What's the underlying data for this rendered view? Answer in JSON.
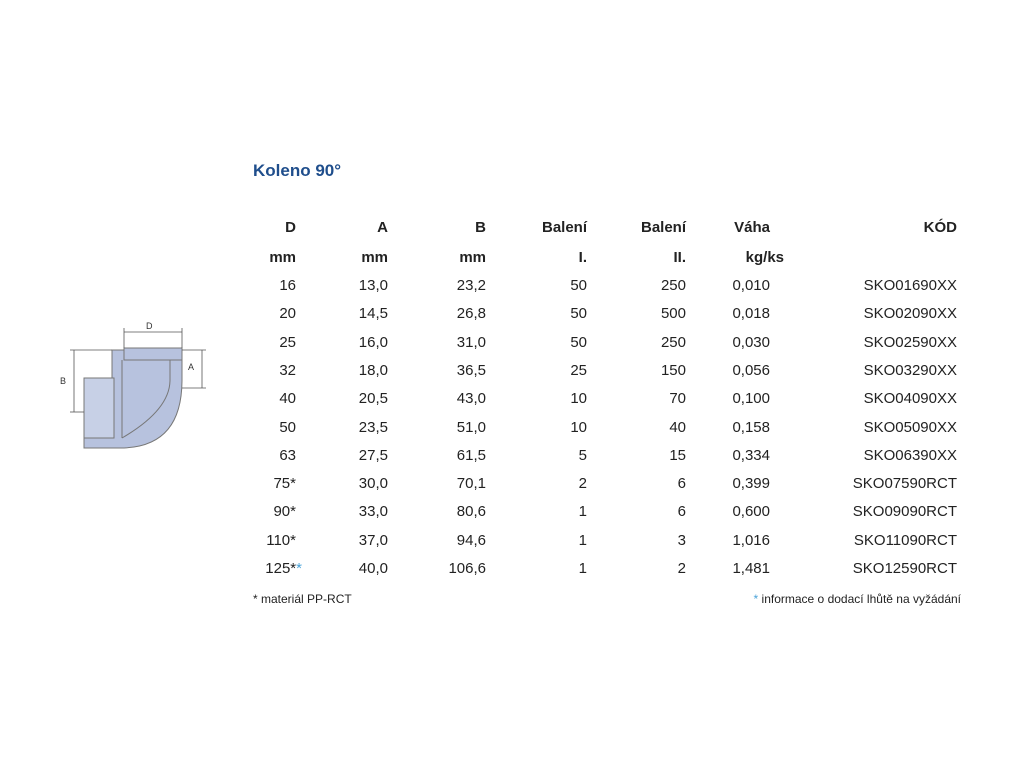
{
  "title": "Koleno 90°",
  "diagram": {
    "labels": {
      "d": "D",
      "a": "A",
      "b": "B"
    }
  },
  "table": {
    "header": [
      [
        "D",
        "A",
        "B",
        "Balení",
        "Balení",
        "Váha",
        "KÓD"
      ],
      [
        "mm",
        "mm",
        "mm",
        "I.",
        "II.",
        "kg/ks",
        null
      ]
    ],
    "rows": [
      [
        "16",
        "13,0",
        "23,2",
        "50",
        "250",
        "0,010",
        "SKO01690XX"
      ],
      [
        "20",
        "14,5",
        "26,8",
        "50",
        "500",
        "0,018",
        "SKO02090XX"
      ],
      [
        "25",
        "16,0",
        "31,0",
        "50",
        "250",
        "0,030",
        "SKO02590XX"
      ],
      [
        "32",
        "18,0",
        "36,5",
        "25",
        "150",
        "0,056",
        "SKO03290XX"
      ],
      [
        "40",
        "20,5",
        "43,0",
        "10",
        "70",
        "0,100",
        "SKO04090XX"
      ],
      [
        "50",
        "23,5",
        "51,0",
        "10",
        "40",
        "0,158",
        "SKO05090XX"
      ],
      [
        "63",
        "27,5",
        "61,5",
        "5",
        "15",
        "0,334",
        "SKO06390XX"
      ],
      [
        "75*",
        "30,0",
        "70,1",
        "2",
        "6",
        "0,399",
        "SKO07590RCT"
      ],
      [
        "90*",
        "33,0",
        "80,6",
        "1",
        "6",
        "0,600",
        "SKO09090RCT"
      ],
      [
        "110*",
        "37,0",
        "94,6",
        "1",
        "3",
        "1,016",
        "SKO11090RCT"
      ],
      [
        {
          "text": "125*",
          "mark": "*"
        },
        "40,0",
        "106,6",
        "1",
        "2",
        "1,481",
        "SKO12590RCT"
      ]
    ]
  },
  "footnotes": {
    "left": "* materiál PP-RCT",
    "right": {
      "mark": "*",
      "text": " informace o dodací lhůtě na vyžádání"
    }
  }
}
